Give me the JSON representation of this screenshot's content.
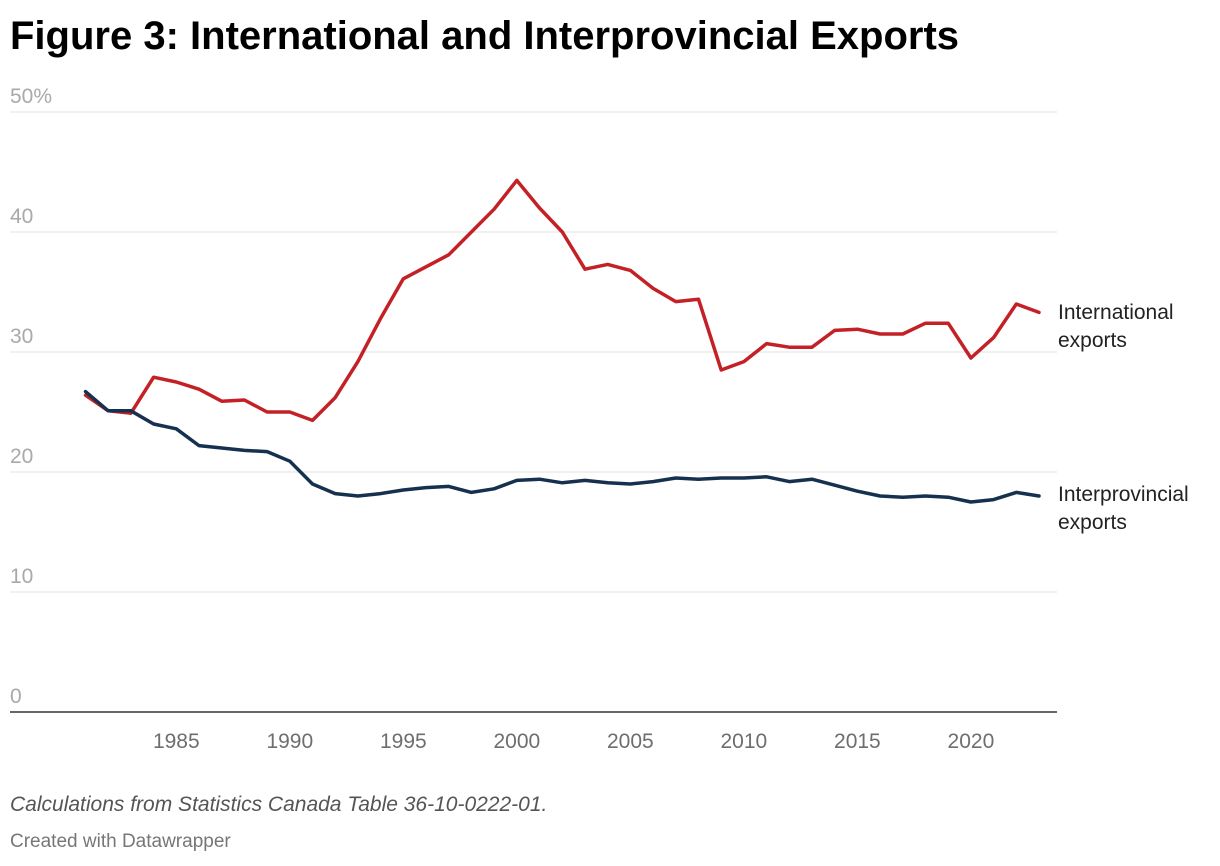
{
  "chart_data": {
    "type": "line",
    "title": "Figure 3: International and Interprovincial Exports",
    "note": "Calculations from Statistics Canada Table 36-10-0222-01.",
    "credit": "Created with Datawrapper",
    "ylim": [
      0,
      50
    ],
    "xlim": [
      1981,
      2023
    ],
    "y_ticks": [
      "0",
      "10",
      "20",
      "30",
      "40",
      "50%"
    ],
    "y_tick_values": [
      0,
      10,
      20,
      30,
      40,
      50
    ],
    "x_ticks": [
      "1985",
      "1990",
      "1995",
      "2000",
      "2005",
      "2010",
      "2015",
      "2020"
    ],
    "x_tick_values": [
      1985,
      1990,
      1995,
      2000,
      2005,
      2010,
      2015,
      2020
    ],
    "grid": true,
    "legend": "direct labels at line ends",
    "x": [
      1981,
      1982,
      1983,
      1984,
      1985,
      1986,
      1987,
      1988,
      1989,
      1990,
      1991,
      1992,
      1993,
      1994,
      1995,
      1996,
      1997,
      1998,
      1999,
      2000,
      2001,
      2002,
      2003,
      2004,
      2005,
      2006,
      2007,
      2008,
      2009,
      2010,
      2011,
      2012,
      2013,
      2014,
      2015,
      2016,
      2017,
      2018,
      2019,
      2020,
      2021,
      2022,
      2023
    ],
    "series": [
      {
        "name": "International exports",
        "label_lines": [
          "International",
          "exports"
        ],
        "color": "#c42127",
        "values": [
          26.4,
          25.1,
          24.9,
          27.9,
          27.5,
          26.9,
          25.9,
          26.0,
          25.0,
          25.0,
          24.3,
          26.2,
          29.2,
          32.8,
          36.1,
          37.1,
          38.1,
          40.0,
          41.9,
          44.3,
          42.0,
          40.0,
          36.9,
          37.3,
          36.8,
          35.3,
          34.2,
          34.4,
          28.5,
          29.2,
          30.7,
          30.4,
          30.4,
          31.8,
          31.9,
          31.5,
          31.5,
          32.4,
          32.4,
          29.5,
          31.2,
          34.0,
          33.3
        ]
      },
      {
        "name": "Interprovincial exports",
        "label_lines": [
          "Interprovincial",
          "exports"
        ],
        "color": "#15314f",
        "values": [
          26.7,
          25.1,
          25.1,
          24.0,
          23.6,
          22.2,
          22.0,
          21.8,
          21.7,
          20.9,
          19.0,
          18.2,
          18.0,
          18.2,
          18.5,
          18.7,
          18.8,
          18.3,
          18.6,
          19.3,
          19.4,
          19.1,
          19.3,
          19.1,
          19.0,
          19.2,
          19.5,
          19.4,
          19.5,
          19.5,
          19.6,
          19.2,
          19.4,
          18.9,
          18.4,
          18.0,
          17.9,
          18.0,
          17.9,
          17.5,
          17.7,
          18.3,
          18.0
        ]
      }
    ]
  }
}
